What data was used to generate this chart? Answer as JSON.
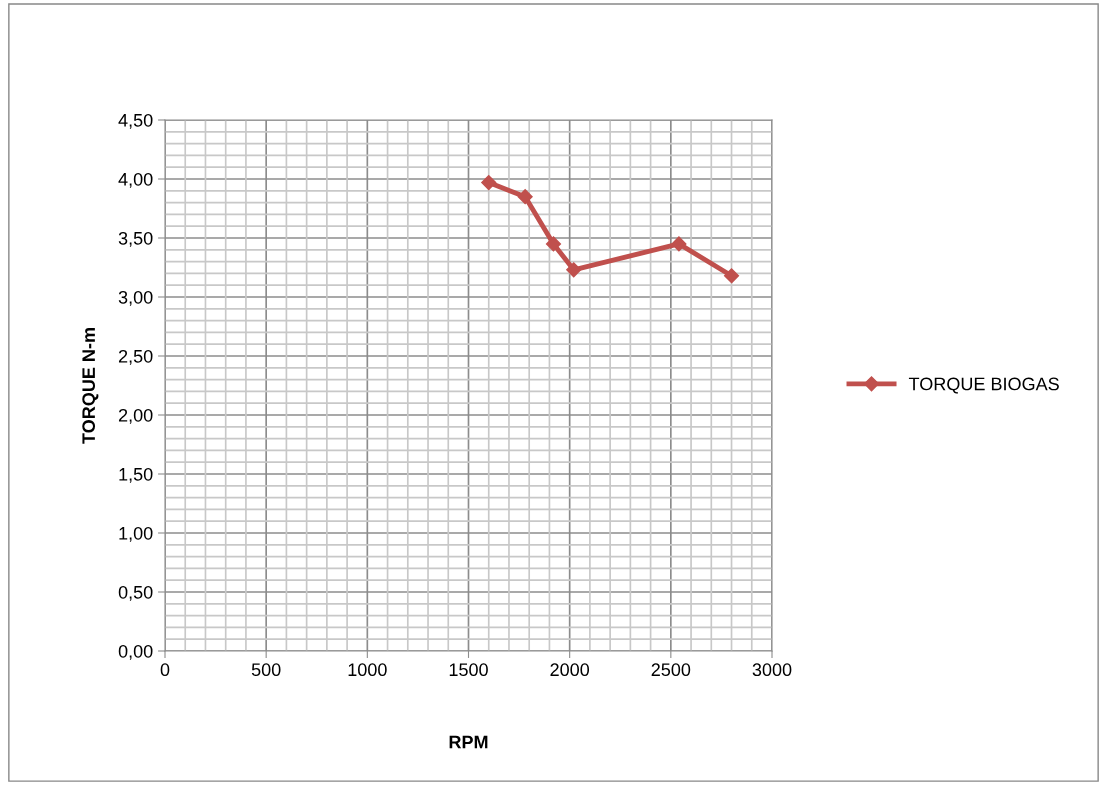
{
  "chart_data": {
    "type": "line",
    "xlabel": "RPM",
    "ylabel": "TORQUE N-m",
    "x": [
      1600,
      1780,
      1920,
      2020,
      2540,
      2800
    ],
    "series": [
      {
        "name": "TORQUE BIOGAS",
        "color": "#c0504d",
        "values": [
          3.97,
          3.85,
          3.45,
          3.23,
          3.45,
          3.18
        ]
      }
    ],
    "xlim": [
      0,
      3000
    ],
    "xticks": [
      0,
      500,
      1000,
      1500,
      2000,
      2500,
      3000
    ],
    "ylim": [
      0,
      4.5
    ],
    "yticks": [
      {
        "value": 0,
        "label": "0,00"
      },
      {
        "value": 0.5,
        "label": "0,50"
      },
      {
        "value": 1,
        "label": "1,00"
      },
      {
        "value": 1.5,
        "label": "1,50"
      },
      {
        "value": 2,
        "label": "2,00"
      },
      {
        "value": 2.5,
        "label": "2,50"
      },
      {
        "value": 3,
        "label": "3,00"
      },
      {
        "value": 3.5,
        "label": "3,50"
      },
      {
        "value": 4,
        "label": "4,00"
      },
      {
        "value": 4.5,
        "label": "4,50"
      }
    ],
    "grid": true,
    "legend": "right",
    "marker": "diamond",
    "line_style": "solid"
  }
}
